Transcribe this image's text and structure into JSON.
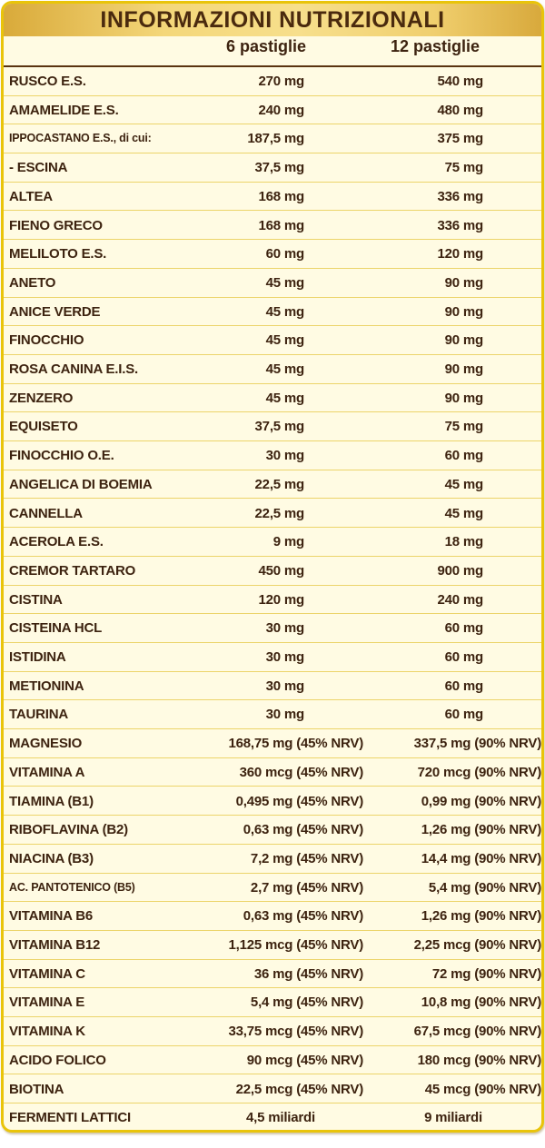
{
  "title": "INFORMAZIONI NUTRIZIONALI",
  "columns": [
    "6 pastiglie",
    "12 pastiglie"
  ],
  "colors": {
    "border": "#e9c40a",
    "background": "#fffbe3",
    "text": "#3d2310",
    "header_band": "#f4d77a"
  },
  "rows": [
    {
      "label": "RUSCO E.S.",
      "v1": "270 mg",
      "v2": "540 mg",
      "type": "mg"
    },
    {
      "label": "AMAMELIDE E.S.",
      "v1": "240 mg",
      "v2": "480 mg",
      "type": "mg"
    },
    {
      "label": "IPPOCASTANO E.S., di cui:",
      "v1": "187,5 mg",
      "v2": "375 mg",
      "type": "mg",
      "narrow": true
    },
    {
      "label": " - ESCINA",
      "v1": "37,5 mg",
      "v2": "75 mg",
      "type": "mg"
    },
    {
      "label": "ALTEA",
      "v1": "168 mg",
      "v2": "336 mg",
      "type": "mg"
    },
    {
      "label": "FIENO GRECO",
      "v1": "168 mg",
      "v2": "336 mg",
      "type": "mg"
    },
    {
      "label": "MELILOTO E.S.",
      "v1": "60 mg",
      "v2": "120 mg",
      "type": "mg"
    },
    {
      "label": "ANETO",
      "v1": "45 mg",
      "v2": "90 mg",
      "type": "mg"
    },
    {
      "label": "ANICE VERDE",
      "v1": "45 mg",
      "v2": "90 mg",
      "type": "mg"
    },
    {
      "label": "FINOCCHIO",
      "v1": "45 mg",
      "v2": "90 mg",
      "type": "mg"
    },
    {
      "label": "ROSA CANINA E.I.S.",
      "v1": "45 mg",
      "v2": "90 mg",
      "type": "mg"
    },
    {
      "label": "ZENZERO",
      "v1": "45 mg",
      "v2": "90 mg",
      "type": "mg"
    },
    {
      "label": "EQUISETO",
      "v1": "37,5 mg",
      "v2": "75 mg",
      "type": "mg"
    },
    {
      "label": "FINOCCHIO O.E.",
      "v1": "30 mg",
      "v2": "60 mg",
      "type": "mg"
    },
    {
      "label": "ANGELICA DI BOEMIA",
      "v1": "22,5 mg",
      "v2": "45 mg",
      "type": "mg"
    },
    {
      "label": "CANNELLA",
      "v1": "22,5 mg",
      "v2": "45 mg",
      "type": "mg"
    },
    {
      "label": "ACEROLA E.S.",
      "v1": "9 mg",
      "v2": "18 mg",
      "type": "mg"
    },
    {
      "label": "CREMOR TARTARO",
      "v1": "450 mg",
      "v2": "900 mg",
      "type": "mg"
    },
    {
      "label": "CISTINA",
      "v1": "120 mg",
      "v2": "240 mg",
      "type": "mg"
    },
    {
      "label": "CISTEINA HCL",
      "v1": "30 mg",
      "v2": "60 mg",
      "type": "mg"
    },
    {
      "label": "ISTIDINA",
      "v1": "30 mg",
      "v2": "60 mg",
      "type": "mg"
    },
    {
      "label": "METIONINA",
      "v1": "30 mg",
      "v2": "60 mg",
      "type": "mg"
    },
    {
      "label": "TAURINA",
      "v1": "30 mg",
      "v2": "60 mg",
      "type": "mg"
    },
    {
      "label": "MAGNESIO",
      "v1": "168,75 mg (45% NRV)",
      "v2": "337,5 mg (90% NRV)",
      "type": "nrv"
    },
    {
      "label": "VITAMINA A",
      "v1": "360 mcg (45% NRV)",
      "v2": "720 mcg (90% NRV)",
      "type": "nrv"
    },
    {
      "label": "TIAMINA (B1)",
      "v1": "0,495 mg (45% NRV)",
      "v2": "0,99 mg (90% NRV)",
      "type": "nrv"
    },
    {
      "label": "RIBOFLAVINA (B2)",
      "v1": "0,63 mg (45% NRV)",
      "v2": "1,26 mg (90% NRV)",
      "type": "nrv"
    },
    {
      "label": "NIACINA (B3)",
      "v1": "7,2 mg (45% NRV)",
      "v2": "14,4 mg (90% NRV)",
      "type": "nrv"
    },
    {
      "label": "AC. PANTOTENICO (B5)",
      "v1": "2,7 mg (45% NRV)",
      "v2": "5,4 mg (90% NRV)",
      "type": "nrv",
      "narrow": true
    },
    {
      "label": "VITAMINA B6",
      "v1": "0,63 mg (45% NRV)",
      "v2": "1,26 mg (90% NRV)",
      "type": "nrv"
    },
    {
      "label": "VITAMINA B12",
      "v1": "1,125 mcg (45% NRV)",
      "v2": "2,25 mcg (90% NRV)",
      "type": "nrv"
    },
    {
      "label": "VITAMINA C",
      "v1": "36 mg (45% NRV)",
      "v2": "72 mg (90% NRV)",
      "type": "nrv"
    },
    {
      "label": "VITAMINA E",
      "v1": "5,4 mg (45% NRV)",
      "v2": "10,8 mg (90% NRV)",
      "type": "nrv"
    },
    {
      "label": "VITAMINA K",
      "v1": "33,75 mcg (45% NRV)",
      "v2": "67,5 mcg (90% NRV)",
      "type": "nrv"
    },
    {
      "label": "ACIDO FOLICO",
      "v1": "90 mcg (45% NRV)",
      "v2": "180 mcg (90% NRV)",
      "type": "nrv"
    },
    {
      "label": "BIOTINA",
      "v1": "22,5 mcg (45% NRV)",
      "v2": "45 mcg (90% NRV)",
      "type": "nrv"
    },
    {
      "label": "FERMENTI LATTICI",
      "v1": "4,5 miliardi",
      "v2": "9 miliardi",
      "type": "center"
    }
  ]
}
